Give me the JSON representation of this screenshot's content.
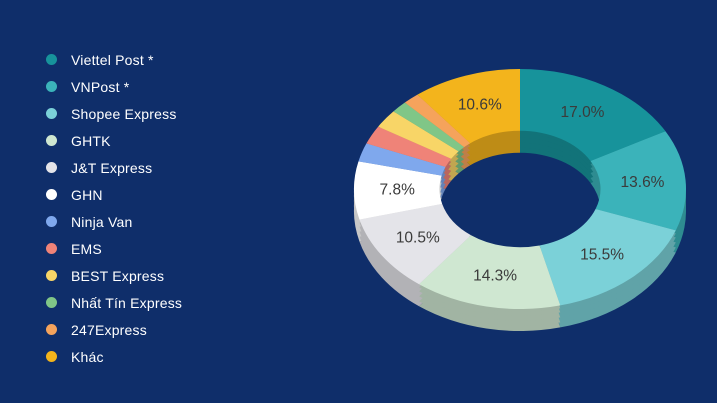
{
  "page": {
    "background_color": "#0F2E6A"
  },
  "chart_data": {
    "type": "pie",
    "style": "3d-donut",
    "start_angle_deg": 0,
    "direction": "clockwise",
    "hole_ratio": 0.485,
    "legend_position": "left",
    "data_label_format": "0.0%",
    "data_label_color": "#3B3B3B",
    "data_label_min_percent_shown": 7,
    "legend_text_color": "#FFFFFF",
    "series": [
      {
        "label": "Viettel Post *",
        "value": 17.0,
        "color": "#17939B",
        "label_visible": true
      },
      {
        "label": "VNPost *",
        "value": 13.6,
        "color": "#3BB3BA",
        "label_visible": true
      },
      {
        "label": "Shopee Express",
        "value": 15.5,
        "color": "#7BD1D8",
        "label_visible": true
      },
      {
        "label": "GHTK",
        "value": 14.3,
        "color": "#CFE7D1",
        "label_visible": true
      },
      {
        "label": "J&T Express",
        "value": 10.5,
        "color": "#E4E4E9",
        "label_visible": true
      },
      {
        "label": "GHN",
        "value": 7.8,
        "color": "#FFFFFF",
        "label_visible": true
      },
      {
        "label": "Ninja Van",
        "value": 2.5,
        "color": "#7FA8ED",
        "label_visible": false
      },
      {
        "label": "EMS",
        "value": 2.5,
        "color": "#EF8378",
        "label_visible": false
      },
      {
        "label": "BEST Express",
        "value": 2.5,
        "color": "#F8D567",
        "label_visible": false
      },
      {
        "label": "Nhất Tín Express",
        "value": 1.6,
        "color": "#80C687",
        "label_visible": false
      },
      {
        "label": "247Express",
        "value": 1.6,
        "color": "#F5A35C",
        "label_visible": false
      },
      {
        "label": "Khác",
        "value": 10.6,
        "color": "#F3B41C",
        "label_visible": true
      }
    ]
  }
}
